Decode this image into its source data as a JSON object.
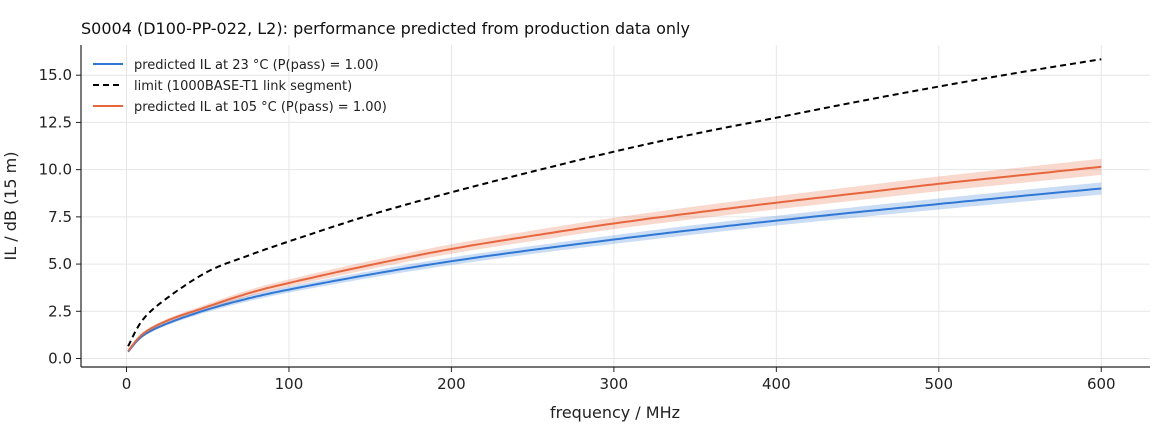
{
  "chart_data": {
    "type": "line",
    "title": "S0004 (D100-PP-022, L2): performance predicted from production data only",
    "xlabel": "frequency / MHz",
    "ylabel": "IL / dB (15 m)",
    "xlim": [
      -28,
      630
    ],
    "ylim": [
      -0.45,
      16.6
    ],
    "xticks": [
      0,
      100,
      200,
      300,
      400,
      500,
      600
    ],
    "yticks": [
      0.0,
      2.5,
      5.0,
      7.5,
      10.0,
      12.5,
      15.0
    ],
    "xtick_labels": [
      "0",
      "100",
      "200",
      "300",
      "400",
      "500",
      "600"
    ],
    "ytick_labels": [
      "0.0",
      "2.5",
      "5.0",
      "7.5",
      "10.0",
      "12.5",
      "15.0"
    ],
    "grid": true,
    "legend_position": "top-left",
    "x": [
      1,
      10,
      25,
      50,
      75,
      100,
      150,
      200,
      250,
      300,
      350,
      400,
      450,
      500,
      550,
      600
    ],
    "series": [
      {
        "name": "predicted IL at 23 °C (P(pass) = 1.00)",
        "color": "#2f78d6",
        "style": "solid",
        "values": [
          0.36,
          1.2,
          1.85,
          2.6,
          3.18,
          3.65,
          4.45,
          5.15,
          5.75,
          6.3,
          6.82,
          7.3,
          7.75,
          8.18,
          8.6,
          9.0
        ],
        "band_lower": [
          0.33,
          1.13,
          1.76,
          2.47,
          3.03,
          3.49,
          4.27,
          4.95,
          5.54,
          6.07,
          6.57,
          7.04,
          7.47,
          7.89,
          8.29,
          8.68
        ],
        "band_upper": [
          0.39,
          1.27,
          1.94,
          2.73,
          3.33,
          3.81,
          4.63,
          5.35,
          5.96,
          6.53,
          7.07,
          7.56,
          8.03,
          8.47,
          8.91,
          9.32
        ]
      },
      {
        "name": "limit (1000BASE-T1 link segment)",
        "color": "#000000",
        "style": "dashed",
        "values": [
          0.65,
          2.05,
          3.2,
          4.6,
          5.45,
          6.2,
          7.6,
          8.8,
          9.9,
          10.95,
          11.9,
          12.75,
          13.6,
          14.4,
          15.15,
          15.85
        ]
      },
      {
        "name": "predicted IL at 105 °C (P(pass) = 1.00)",
        "color": "#e8663d",
        "style": "solid",
        "values": [
          0.4,
          1.3,
          2.0,
          2.75,
          3.45,
          4.0,
          4.95,
          5.8,
          6.5,
          7.15,
          7.72,
          8.25,
          8.75,
          9.25,
          9.7,
          10.15
        ],
        "band_lower": [
          0.36,
          1.22,
          1.9,
          2.61,
          3.28,
          3.81,
          4.73,
          5.55,
          6.22,
          6.85,
          7.39,
          7.9,
          8.38,
          8.86,
          9.29,
          9.72
        ],
        "band_upper": [
          0.44,
          1.38,
          2.1,
          2.89,
          3.62,
          4.19,
          5.17,
          6.05,
          6.78,
          7.45,
          8.05,
          8.6,
          9.12,
          9.64,
          10.11,
          10.58
        ]
      }
    ]
  }
}
